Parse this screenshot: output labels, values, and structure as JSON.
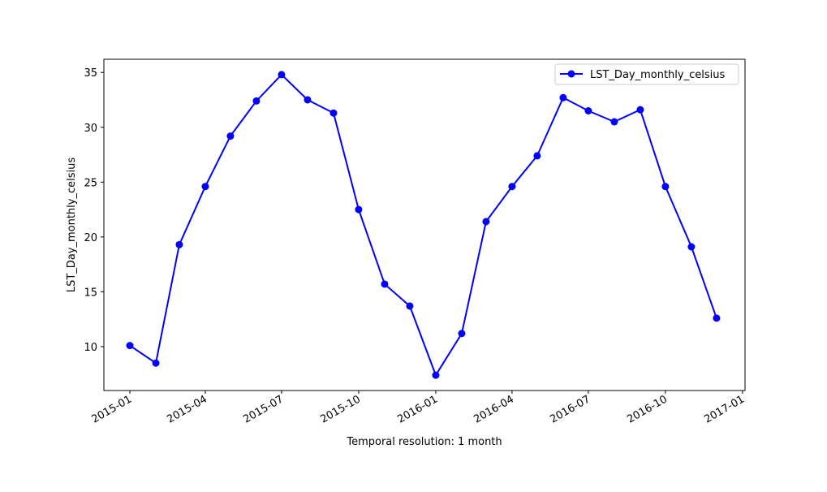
{
  "chart_data": {
    "type": "line",
    "title": "",
    "xlabel": "Temporal resolution: 1 month",
    "ylabel": "LST_Day_monthly_celsius",
    "x_axis_type": "date",
    "xlim": [
      "2014-12-01",
      "2017-01-04"
    ],
    "ylim": [
      6.0,
      36.2
    ],
    "x_ticks": [
      "2015-01",
      "2015-04",
      "2015-07",
      "2015-10",
      "2016-01",
      "2016-04",
      "2016-07",
      "2016-10",
      "2017-01"
    ],
    "y_ticks": [
      10,
      15,
      20,
      25,
      30,
      35
    ],
    "grid": false,
    "legend": {
      "position": "top-right",
      "entries": [
        "LST_Day_monthly_celsius"
      ]
    },
    "series": [
      {
        "name": "LST_Day_monthly_celsius",
        "color": "#0000ff",
        "marker": "circle",
        "x": [
          "2015-01-01",
          "2015-02-01",
          "2015-03-01",
          "2015-04-01",
          "2015-05-01",
          "2015-06-01",
          "2015-07-01",
          "2015-08-01",
          "2015-09-01",
          "2015-10-01",
          "2015-11-01",
          "2015-12-01",
          "2016-01-01",
          "2016-02-01",
          "2016-03-01",
          "2016-04-01",
          "2016-05-01",
          "2016-06-01",
          "2016-07-01",
          "2016-08-01",
          "2016-09-01",
          "2016-10-01",
          "2016-11-01",
          "2016-12-01"
        ],
        "values": [
          10.1,
          8.5,
          19.3,
          24.6,
          29.2,
          32.4,
          34.8,
          32.5,
          31.3,
          22.5,
          15.7,
          13.7,
          7.4,
          11.2,
          21.4,
          24.6,
          27.4,
          32.7,
          31.5,
          30.5,
          31.6,
          24.6,
          19.1,
          12.6
        ]
      }
    ]
  }
}
